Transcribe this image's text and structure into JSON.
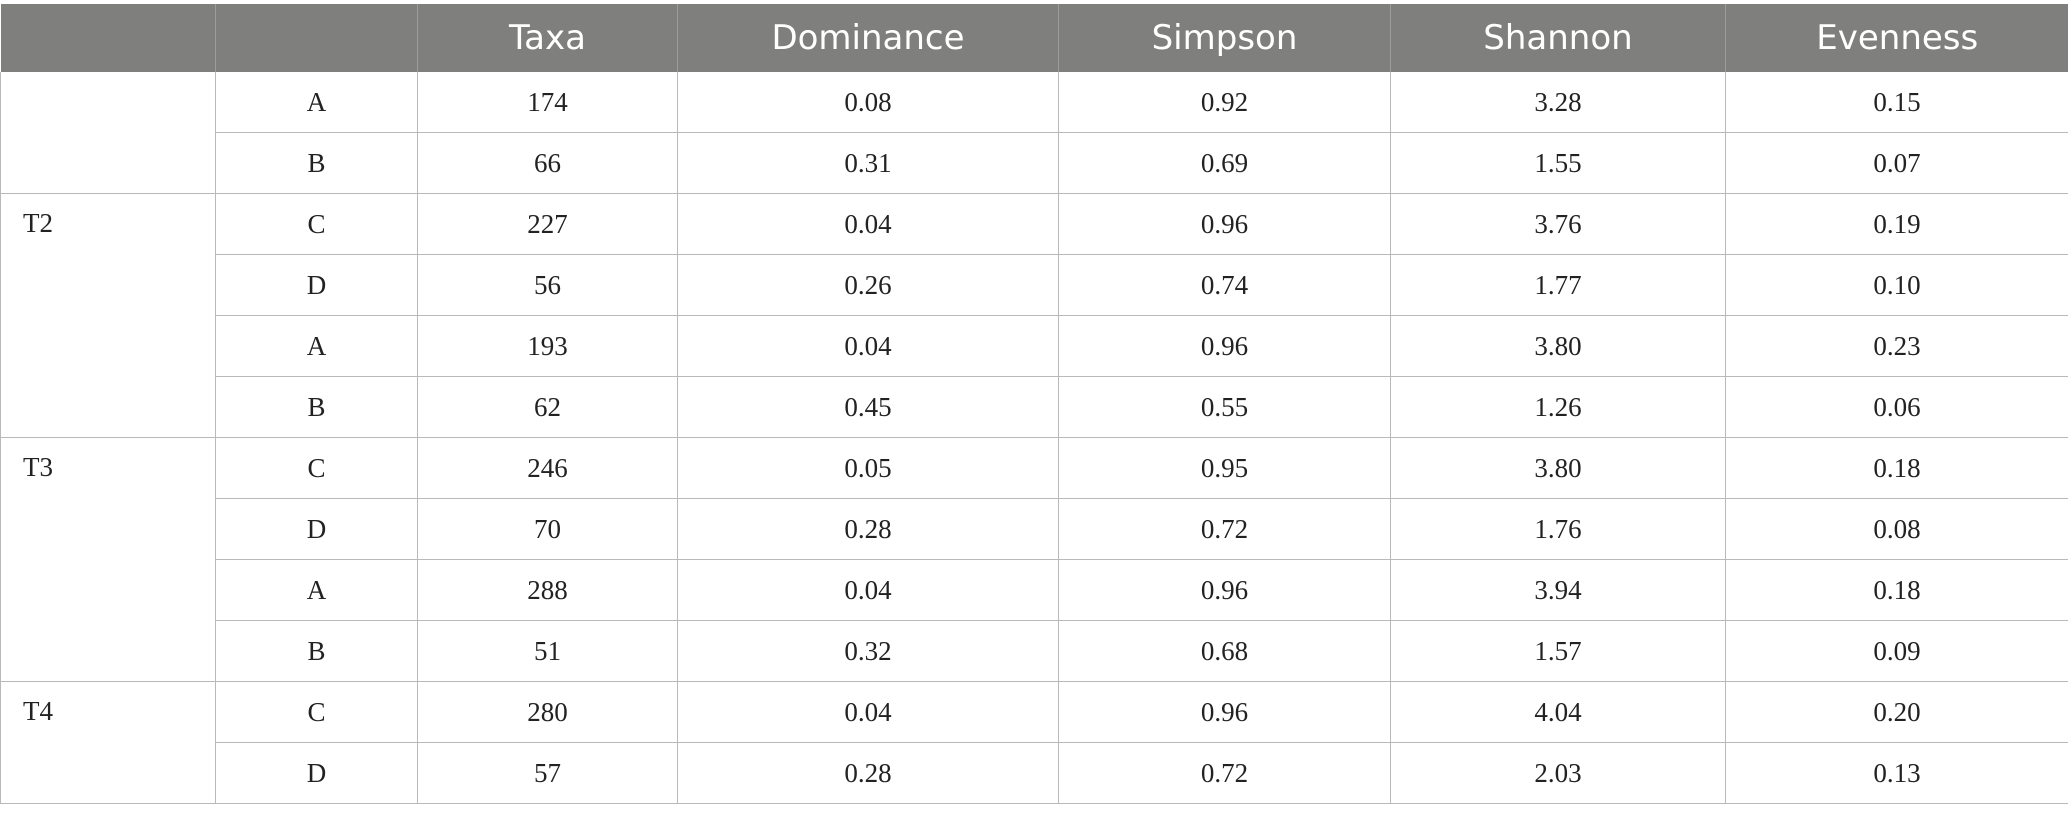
{
  "table": {
    "headers": [
      "",
      "",
      "Taxa",
      "Dominance",
      "Simpson",
      "Shannon",
      "Evenness"
    ],
    "groups": [
      {
        "label": "",
        "rows": [
          {
            "sample": "A",
            "taxa": "174",
            "dominance": "0.08",
            "simpson": "0.92",
            "shannon": "3.28",
            "evenness": "0.15"
          },
          {
            "sample": "B",
            "taxa": "66",
            "dominance": "0.31",
            "simpson": "0.69",
            "shannon": "1.55",
            "evenness": "0.07"
          }
        ]
      },
      {
        "label": "T2",
        "rows": [
          {
            "sample": "C",
            "taxa": "227",
            "dominance": "0.04",
            "simpson": "0.96",
            "shannon": "3.76",
            "evenness": "0.19"
          },
          {
            "sample": "D",
            "taxa": "56",
            "dominance": "0.26",
            "simpson": "0.74",
            "shannon": "1.77",
            "evenness": "0.10"
          },
          {
            "sample": "A",
            "taxa": "193",
            "dominance": "0.04",
            "simpson": "0.96",
            "shannon": "3.80",
            "evenness": "0.23"
          },
          {
            "sample": "B",
            "taxa": "62",
            "dominance": "0.45",
            "simpson": "0.55",
            "shannon": "1.26",
            "evenness": "0.06"
          }
        ]
      },
      {
        "label": "T3",
        "rows": [
          {
            "sample": "C",
            "taxa": "246",
            "dominance": "0.05",
            "simpson": "0.95",
            "shannon": "3.80",
            "evenness": "0.18"
          },
          {
            "sample": "D",
            "taxa": "70",
            "dominance": "0.28",
            "simpson": "0.72",
            "shannon": "1.76",
            "evenness": "0.08"
          },
          {
            "sample": "A",
            "taxa": "288",
            "dominance": "0.04",
            "simpson": "0.96",
            "shannon": "3.94",
            "evenness": "0.18"
          },
          {
            "sample": "B",
            "taxa": "51",
            "dominance": "0.32",
            "simpson": "0.68",
            "shannon": "1.57",
            "evenness": "0.09"
          }
        ]
      },
      {
        "label": "T4",
        "rows": [
          {
            "sample": "C",
            "taxa": "280",
            "dominance": "0.04",
            "simpson": "0.96",
            "shannon": "4.04",
            "evenness": "0.20"
          },
          {
            "sample": "D",
            "taxa": "57",
            "dominance": "0.28",
            "simpson": "0.72",
            "shannon": "2.03",
            "evenness": "0.13"
          }
        ]
      }
    ]
  },
  "colors": {
    "header_bg": "#7f807e",
    "header_text": "#ffffff",
    "grid_line": "#b9b9b9"
  }
}
